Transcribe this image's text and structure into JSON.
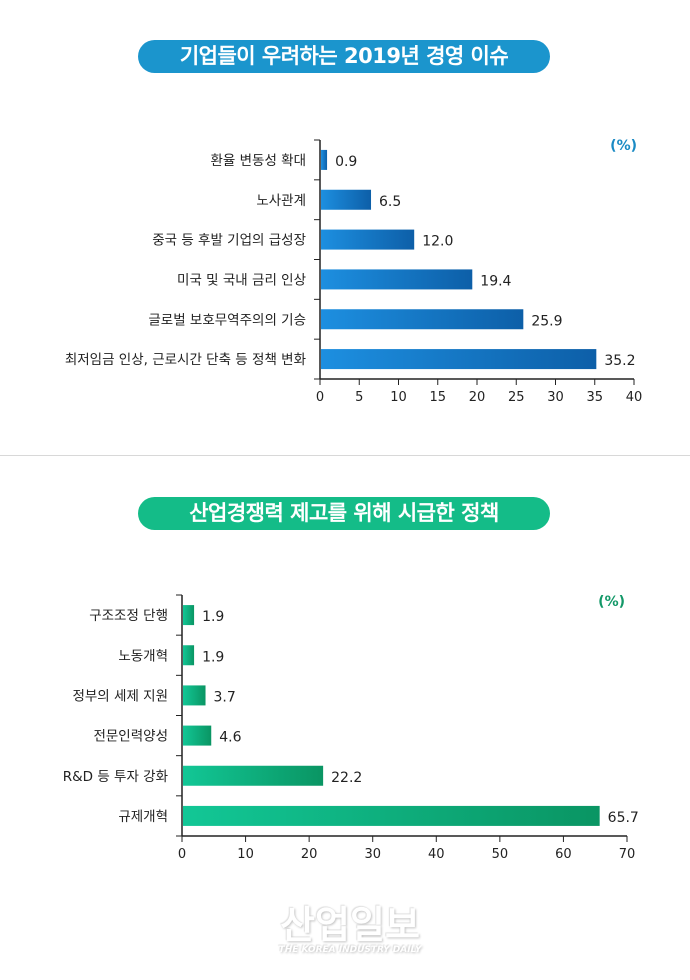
{
  "chart_data": [
    {
      "type": "bar",
      "orientation": "horizontal",
      "title": "기업들이 우려하는 2019년 경영 이슈",
      "unit": "(%)",
      "color": "#1b7fd0",
      "categories": [
        "환율 변동성 확대",
        "노사관계",
        "중국 등 후발 기업의 급성장",
        "미국 및 국내 금리 인상",
        "글로벌 보호무역주의의 기승",
        "최저임금 인상, 근로시간 단축 등 정책 변화"
      ],
      "values": [
        0.9,
        6.5,
        12.0,
        19.4,
        25.9,
        35.2
      ],
      "labels": [
        "0.9",
        "6.5",
        "12.0",
        "19.4",
        "25.9",
        "35.2"
      ],
      "xlim": [
        0,
        40
      ],
      "xticks": [
        0,
        5,
        10,
        15,
        20,
        25,
        30,
        35,
        40
      ],
      "grid": false
    },
    {
      "type": "bar",
      "orientation": "horizontal",
      "title": "산업경쟁력 제고를 위해 시급한 정책",
      "unit": "(%)",
      "color": "#10b281",
      "categories": [
        "구조조정 단행",
        "노동개혁",
        "정부의 세제 지원",
        "전문인력양성",
        "R&D 등 투자 강화",
        "규제개혁"
      ],
      "values": [
        1.9,
        1.9,
        3.7,
        4.6,
        22.2,
        65.7
      ],
      "labels": [
        "1.9",
        "1.9",
        "3.7",
        "4.6",
        "22.2",
        "65.7"
      ],
      "xlim": [
        0,
        70
      ],
      "xticks": [
        0,
        10,
        20,
        30,
        40,
        50,
        60,
        70
      ],
      "grid": false
    }
  ],
  "watermark": {
    "name": "산업일보",
    "sub": "THE KOREA INDUSTRY DAILY"
  }
}
